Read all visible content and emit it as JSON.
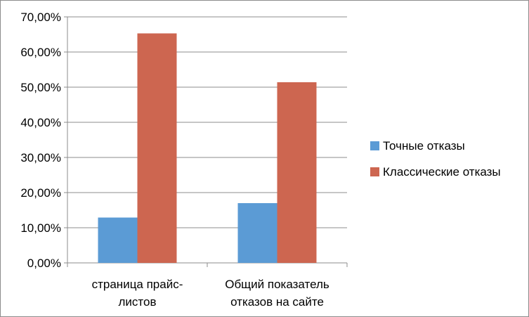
{
  "chart_data": {
    "type": "bar",
    "categories": [
      [
        "страница прайс-",
        "листов"
      ],
      [
        "Общий показатель",
        "отказов на сайте"
      ]
    ],
    "series": [
      {
        "name": "Точные отказы",
        "values": [
          0.129,
          0.17
        ],
        "color": "#5b9bd5"
      },
      {
        "name": "Классические отказы",
        "values": [
          0.653,
          0.514
        ],
        "color": "#cd6650"
      }
    ],
    "y_ticks": [
      {
        "value": 0.0,
        "label": "0,00%"
      },
      {
        "value": 0.1,
        "label": "10,00%"
      },
      {
        "value": 0.2,
        "label": "20,00%"
      },
      {
        "value": 0.3,
        "label": "30,00%"
      },
      {
        "value": 0.4,
        "label": "40,00%"
      },
      {
        "value": 0.5,
        "label": "50,00%"
      },
      {
        "value": 0.6,
        "label": "60,00%"
      },
      {
        "value": 0.7,
        "label": "70,00%"
      }
    ],
    "ylim": [
      0,
      0.7
    ],
    "grid": true,
    "legend_position": "right",
    "title": "",
    "xlabel": "",
    "ylabel": ""
  }
}
